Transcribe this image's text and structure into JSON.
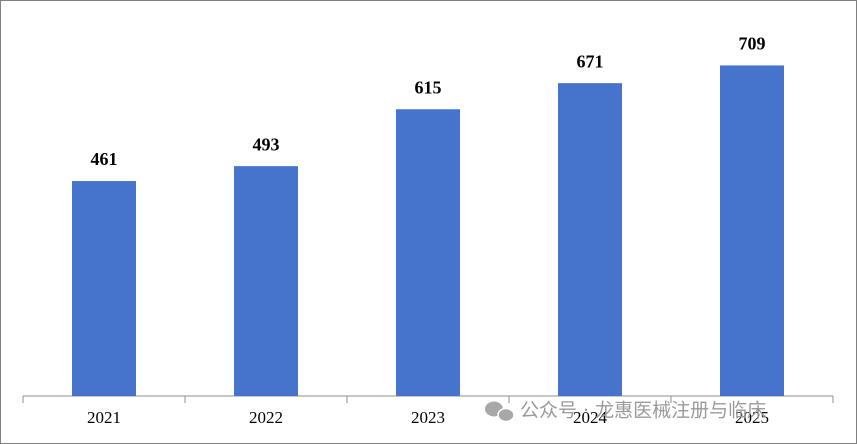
{
  "chart_data": {
    "type": "bar",
    "categories": [
      "2021",
      "2022",
      "2023",
      "2024",
      "2025"
    ],
    "values": [
      461,
      493,
      615,
      671,
      709
    ],
    "color": "#4673cb",
    "ylim": [
      0,
      800
    ],
    "watermark": "公众号 · 龙惠医械注册与临床"
  }
}
